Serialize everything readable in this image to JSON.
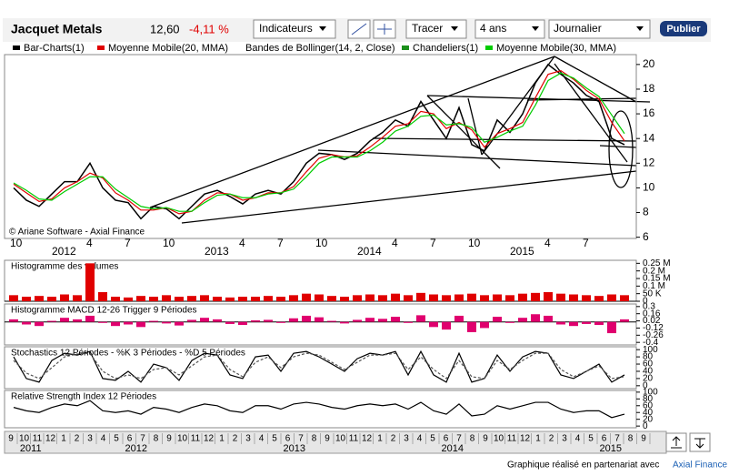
{
  "toolbar": {
    "name": "Jacquet Metals",
    "price": "12,60",
    "change": "-4,11 %",
    "indicators": "Indicateurs",
    "draw": "Tracer",
    "period": "4 ans",
    "interval": "Journalier",
    "publish": "Publier"
  },
  "copyright": "© Ariane Software - Axial Finance",
  "footer": {
    "text": "Graphique réalisé en partenariat avec",
    "link": "Axial Finance"
  },
  "indicators": [
    {
      "name": "Bandes de Bollinger(14, 2, Close)",
      "color": null
    },
    {
      "name": "Chandeliers(1)",
      "color": "#1a8f1a"
    }
  ],
  "navigator": {
    "months": [
      "9",
      "10",
      "11",
      "12",
      "1",
      "2",
      "3",
      "4",
      "5",
      "6",
      "7",
      "8",
      "9",
      "10",
      "11",
      "12",
      "1",
      "2",
      "3",
      "4",
      "5",
      "6",
      "7",
      "8",
      "9",
      "10",
      "11",
      "12",
      "1",
      "2",
      "3",
      "4",
      "5",
      "6",
      "7",
      "8",
      "9",
      "10",
      "11",
      "12",
      "1",
      "2",
      "3",
      "4",
      "5",
      "6",
      "7",
      "8",
      "9"
    ],
    "years": [
      "2011",
      "2012",
      "2013",
      "2014",
      "2015"
    ]
  },
  "chart_data": [
    {
      "type": "line",
      "categories": [
        "10",
        null,
        null,
        "2012",
        null,
        null,
        "4",
        null,
        null,
        "7",
        null,
        null,
        "10",
        null,
        null,
        "2013",
        null,
        null,
        "4",
        null,
        null,
        "7",
        null,
        null,
        "10",
        null,
        null,
        "2014",
        null,
        null,
        "4",
        null,
        null,
        "7",
        null,
        null,
        "10",
        null,
        null,
        "2015",
        null,
        null,
        "4",
        null,
        null,
        "7",
        null,
        null,
        null
      ],
      "series": [
        {
          "name": "Bar-Charts(1)",
          "color": "#000000",
          "values": [
            10,
            9,
            8.5,
            9.5,
            10.5,
            10.5,
            12,
            10,
            9,
            8.8,
            7.5,
            8.5,
            8.3,
            7.5,
            8.5,
            9.5,
            9.8,
            9.3,
            8.7,
            9.5,
            9.8,
            9.5,
            10.5,
            12,
            12.8,
            12.7,
            12.3,
            12.8,
            13.8,
            14.5,
            15.5,
            15,
            17,
            15.5,
            14,
            16.5,
            13.5,
            13,
            15.5,
            14.5,
            16,
            18.5,
            20,
            19.2,
            18.5,
            17.5,
            17,
            14,
            13.5
          ]
        },
        {
          "name": "Moyenne Mobile(20, MMA)",
          "color": "#e00000",
          "values": [
            10.3,
            9.6,
            8.9,
            9.1,
            10,
            10.5,
            11.2,
            10.8,
            9.6,
            9,
            8.2,
            8.2,
            8.4,
            7.9,
            8.1,
            9,
            9.6,
            9.5,
            9,
            9.2,
            9.6,
            9.6,
            10.1,
            11.3,
            12.4,
            12.7,
            12.5,
            12.6,
            13.3,
            14.1,
            15,
            15.2,
            16.2,
            16,
            14.8,
            15.3,
            14.7,
            13.3,
            14.4,
            14.8,
            15.3,
            17.3,
            19.2,
            19.5,
            18.8,
            17.9,
            17.2,
            15.3,
            13.8
          ]
        },
        {
          "name": "Moyenne Mobile(30, MMA)",
          "color": "#00cc00",
          "values": [
            10.4,
            9.8,
            9.1,
            9,
            9.7,
            10.3,
            10.9,
            10.9,
            9.9,
            9.2,
            8.5,
            8.3,
            8.4,
            8.1,
            8.1,
            8.8,
            9.4,
            9.5,
            9.2,
            9.2,
            9.5,
            9.6,
            9.9,
            10.9,
            12,
            12.5,
            12.5,
            12.5,
            13,
            13.7,
            14.6,
            15,
            15.8,
            15.9,
            15.1,
            15.2,
            14.9,
            13.7,
            14.1,
            14.6,
            15,
            16.7,
            18.7,
            19.3,
            18.9,
            18.1,
            17.4,
            15.9,
            14.4
          ]
        }
      ],
      "ylim": [
        5.9,
        20.8
      ],
      "yticks": [
        6,
        8,
        10,
        12,
        14,
        16,
        18,
        20
      ]
    },
    {
      "type": "bar",
      "title": "Histogramme des volumes",
      "color": "#e00000",
      "values": [
        40000,
        30000,
        35000,
        30000,
        45000,
        40000,
        250000,
        60000,
        30000,
        25000,
        35000,
        30000,
        40000,
        30000,
        35000,
        40000,
        30000,
        25000,
        30000,
        30000,
        35000,
        30000,
        40000,
        50000,
        45000,
        35000,
        30000,
        40000,
        45000,
        40000,
        50000,
        40000,
        55000,
        45000,
        40000,
        45000,
        50000,
        40000,
        45000,
        40000,
        50000,
        55000,
        60000,
        50000,
        45000,
        40000,
        35000,
        45000,
        40000
      ],
      "ylim": [
        0,
        270000
      ],
      "yticks": [
        {
          "value": 250000,
          "label": "0.25 M"
        },
        {
          "value": 200000,
          "label": "0.2 M"
        },
        {
          "value": 150000,
          "label": "0.15 M"
        },
        {
          "value": 100000,
          "label": "0.1 M"
        },
        {
          "value": 50000,
          "label": "50 K"
        },
        0
      ]
    },
    {
      "type": "bar",
      "title": "Histogramme MACD 12-26  Trigger 9 Périodes",
      "color": "#e0006e",
      "values": [
        0.05,
        -0.05,
        -0.08,
        0.02,
        0.08,
        0.05,
        0.12,
        -0.02,
        -0.08,
        -0.05,
        -0.1,
        0.02,
        -0.03,
        -0.07,
        0.04,
        0.08,
        0.05,
        -0.04,
        -0.06,
        0.03,
        0.04,
        -0.02,
        0.07,
        0.12,
        0.09,
        0.02,
        -0.03,
        0.04,
        0.08,
        0.06,
        0.1,
        -0.02,
        0.13,
        -0.1,
        -0.15,
        0.12,
        -0.2,
        -0.12,
        0.1,
        -0.02,
        0.08,
        0.15,
        0.12,
        -0.05,
        -0.08,
        -0.04,
        -0.06,
        -0.22,
        0.05
      ],
      "ylim": [
        -0.45,
        0.35
      ],
      "yticks": [
        0.3,
        0.16,
        0.02,
        -0.12,
        -0.26,
        -0.4
      ]
    },
    {
      "type": "line",
      "title": "Stochastics 12 Périodes  -  %K 3 Périodes  -  %D 5 Périodes",
      "series": [
        {
          "color": "#000000",
          "values": [
            80,
            20,
            10,
            70,
            90,
            85,
            95,
            20,
            15,
            40,
            10,
            60,
            50,
            15,
            70,
            90,
            85,
            30,
            20,
            80,
            85,
            40,
            90,
            95,
            80,
            60,
            40,
            75,
            90,
            85,
            95,
            30,
            95,
            30,
            10,
            90,
            10,
            20,
            85,
            40,
            80,
            95,
            90,
            30,
            20,
            40,
            60,
            10,
            30
          ]
        },
        {
          "color": "#555555",
          "dashed": true,
          "values": [
            70,
            35,
            20,
            50,
            80,
            88,
            90,
            40,
            20,
            30,
            20,
            45,
            50,
            30,
            55,
            80,
            85,
            45,
            25,
            65,
            80,
            50,
            80,
            90,
            85,
            65,
            45,
            65,
            85,
            85,
            90,
            45,
            80,
            45,
            20,
            70,
            25,
            20,
            70,
            45,
            70,
            90,
            90,
            45,
            25,
            40,
            55,
            20,
            25
          ]
        }
      ],
      "ylim": [
        -8,
        108
      ],
      "yticks": [
        100,
        80,
        60,
        40,
        20,
        0
      ]
    },
    {
      "type": "line",
      "title": "Relative Strength Index 12 Périodes",
      "series": [
        {
          "color": "#000000",
          "values": [
            55,
            45,
            40,
            55,
            65,
            60,
            75,
            45,
            40,
            45,
            35,
            55,
            50,
            40,
            55,
            65,
            60,
            45,
            40,
            60,
            60,
            50,
            65,
            70,
            65,
            55,
            50,
            60,
            65,
            60,
            65,
            50,
            70,
            45,
            35,
            65,
            30,
            35,
            60,
            50,
            60,
            70,
            70,
            50,
            40,
            45,
            45,
            25,
            35
          ]
        }
      ],
      "ylim": [
        -5,
        105
      ],
      "yticks": [
        100,
        80,
        60,
        40,
        20,
        0
      ]
    }
  ]
}
